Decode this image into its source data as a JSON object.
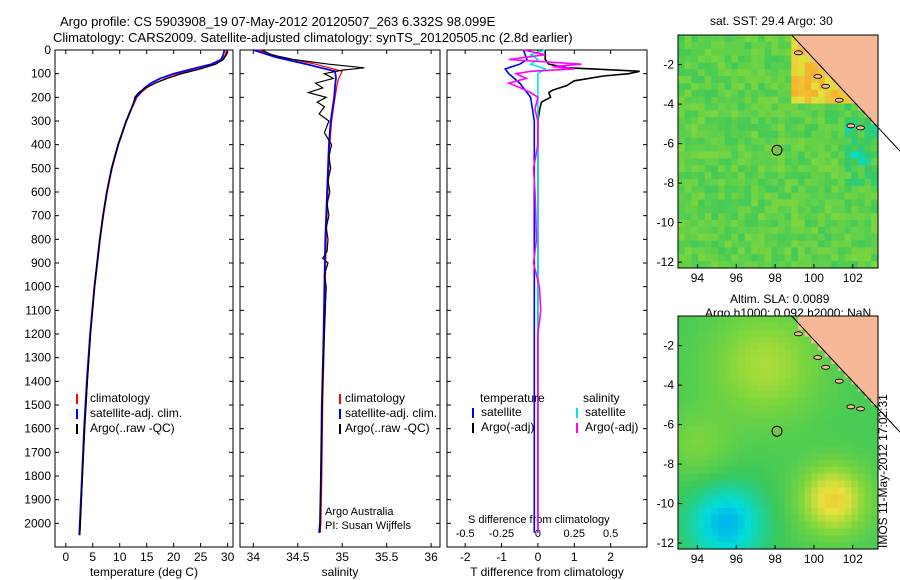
{
  "header": {
    "title_line1": "Argo profile: CS 5903908_19 07-May-2012 20120507_263 6.332S 98.099E",
    "title_line2": "Climatology: CARS2009. Satellite-adjusted climatology: synTS_20120505.nc (2.8d earlier)"
  },
  "sat_panel_title": "sat. SST: 29.4 Argo: 30",
  "sla_line1": "Altim. SLA: 0.0089",
  "sla_line2": "Argo h1000: 0.092 h2000: NaN",
  "timestamp": "IMOS 11-May-2012 17:02:31",
  "credit_line1": "Argo Australia",
  "credit_line2": "PI: Susan Wijffels",
  "s_diff_label": "S difference from climatology",
  "colors": {
    "climatology": "#ff0000",
    "satellite": "#0000ff",
    "argo": "#000000",
    "salinity_sat": "#00e5ee",
    "salinity_argo": "#ff00ff",
    "float_marker": "#7cc242",
    "land": "#f6b896"
  },
  "chart_data": [
    {
      "type": "line",
      "xlabel": "temperature (deg C)",
      "ylabel": "",
      "xlim": [
        -2,
        31
      ],
      "ylim": [
        2100,
        0
      ],
      "xticks": [
        0,
        5,
        10,
        15,
        20,
        25,
        30
      ],
      "yticks": [
        0,
        100,
        200,
        300,
        400,
        500,
        600,
        700,
        800,
        900,
        1000,
        1100,
        1200,
        1300,
        1400,
        1500,
        1600,
        1700,
        1800,
        1900,
        2000
      ],
      "legend": [
        "climatology",
        "satellite-adj. clim.",
        "Argo(..raw -QC)"
      ],
      "legend_position": "lower-left",
      "series": [
        {
          "name": "climatology",
          "y": [
            0,
            20,
            40,
            60,
            80,
            100,
            120,
            140,
            160,
            180,
            200,
            250,
            300,
            400,
            500,
            600,
            700,
            800,
            1000,
            1200,
            1400,
            1600,
            1800,
            2000,
            2050
          ],
          "values": [
            29.8,
            29.6,
            29.0,
            27.5,
            24.5,
            21.0,
            18.5,
            16.5,
            15.0,
            14.0,
            13.2,
            12.2,
            11.3,
            9.8,
            8.6,
            7.7,
            7.0,
            6.4,
            5.4,
            4.6,
            4.0,
            3.5,
            3.1,
            2.7,
            2.6
          ]
        },
        {
          "name": "satellite-adj. clim.",
          "y": [
            0,
            20,
            40,
            60,
            80,
            100,
            120,
            140,
            160,
            180,
            200,
            250,
            300,
            400,
            500,
            600,
            700,
            800,
            1000,
            1200,
            1400,
            1600,
            1800,
            2000,
            2050
          ],
          "values": [
            29.4,
            29.2,
            28.8,
            27.0,
            23.5,
            20.0,
            17.5,
            15.8,
            14.6,
            13.8,
            13.0,
            12.1,
            11.2,
            9.7,
            8.5,
            7.6,
            6.9,
            6.3,
            5.3,
            4.5,
            3.9,
            3.4,
            3.0,
            2.6,
            2.5
          ]
        },
        {
          "name": "Argo(..raw -QC)",
          "y": [
            0,
            20,
            40,
            60,
            80,
            100,
            120,
            140,
            160,
            180,
            200,
            220,
            250,
            300,
            400,
            500,
            600,
            700,
            800,
            1000,
            1200,
            1400,
            1600,
            1800,
            2000,
            2050
          ],
          "values": [
            30.0,
            29.8,
            29.2,
            27.8,
            25.0,
            21.5,
            18.8,
            16.6,
            14.8,
            13.5,
            12.8,
            12.6,
            12.1,
            11.2,
            9.7,
            8.5,
            7.6,
            6.9,
            6.3,
            5.3,
            4.6,
            4.0,
            3.5,
            3.1,
            2.7,
            2.6
          ]
        }
      ]
    },
    {
      "type": "line",
      "xlabel": "salinity",
      "ylabel": "",
      "xlim": [
        33.85,
        36.1
      ],
      "ylim": [
        2100,
        0
      ],
      "xticks": [
        34,
        34.5,
        35,
        35.5,
        36
      ],
      "legend": [
        "climatology",
        "satellite-adj. clim.",
        "Argo(..raw -QC)"
      ],
      "legend_position": "lower-left",
      "series": [
        {
          "name": "climatology",
          "y": [
            0,
            30,
            60,
            90,
            120,
            150,
            200,
            300,
            400,
            500,
            600,
            800,
            1000,
            1200,
            1500,
            1800,
            2000,
            2040
          ],
          "values": [
            34.05,
            34.3,
            34.7,
            35.0,
            34.96,
            34.94,
            34.92,
            34.88,
            34.86,
            34.85,
            34.84,
            34.82,
            34.81,
            34.8,
            34.78,
            34.77,
            34.76,
            34.75
          ]
        },
        {
          "name": "satellite-adj. clim.",
          "y": [
            0,
            30,
            60,
            90,
            120,
            150,
            200,
            300,
            400,
            500,
            600,
            800,
            1000,
            1200,
            1500,
            1800,
            2000,
            2040
          ],
          "values": [
            34.0,
            34.25,
            34.6,
            34.92,
            34.93,
            34.92,
            34.91,
            34.87,
            34.85,
            34.84,
            34.83,
            34.81,
            34.8,
            34.79,
            34.77,
            34.76,
            34.75,
            34.74
          ]
        },
        {
          "name": "Argo(..raw -QC)",
          "y": [
            0,
            20,
            40,
            60,
            75,
            85,
            100,
            120,
            140,
            160,
            180,
            200,
            220,
            240,
            270,
            300,
            350,
            400,
            450,
            500,
            550,
            600,
            650,
            700,
            750,
            800,
            850,
            880,
            900,
            950,
            1000,
            1100,
            1200,
            1400,
            1600,
            1800,
            2000,
            2040
          ],
          "values": [
            34.1,
            34.2,
            34.45,
            34.85,
            35.25,
            35.0,
            34.8,
            34.9,
            34.7,
            34.78,
            34.62,
            34.82,
            34.72,
            34.8,
            34.74,
            34.85,
            34.8,
            34.88,
            34.85,
            34.87,
            34.84,
            34.86,
            34.83,
            34.85,
            34.82,
            34.84,
            34.83,
            34.78,
            34.84,
            34.8,
            34.82,
            34.81,
            34.8,
            34.78,
            34.77,
            34.76,
            34.75,
            34.75
          ]
        }
      ]
    },
    {
      "type": "line",
      "xlabel": "T difference from climatology",
      "ylabel": "",
      "xlim": [
        -2.5,
        3.0
      ],
      "ylim": [
        2100,
        0
      ],
      "xticks": [
        -2,
        -1,
        0,
        1,
        2
      ],
      "x2label": "S difference from climatology",
      "x2lim": [
        -0.625,
        0.75
      ],
      "x2ticks": [
        -0.5,
        -0.25,
        0,
        0.25,
        0.5
      ],
      "legend": [
        "temperature satellite",
        "temperature Argo(-adj)",
        "salinity satellite",
        "salinity Argo(-adj)"
      ],
      "legend_headers": [
        "temperature",
        "salinity"
      ],
      "legend_entries": [
        "satellite",
        "Argo(-adj)",
        "satellite",
        "Argo(-adj)"
      ],
      "legend_position": "lower-center",
      "series": [
        {
          "name": "temperature satellite",
          "axis": "T",
          "y": [
            0,
            40,
            60,
            80,
            100,
            140,
            200,
            300,
            500,
            800,
            1200,
            1600,
            2000,
            2040
          ],
          "values": [
            -0.4,
            -0.3,
            -0.5,
            -0.9,
            -0.8,
            -0.5,
            -0.2,
            -0.1,
            -0.1,
            -0.1,
            -0.1,
            -0.1,
            -0.1,
            -0.1
          ]
        },
        {
          "name": "temperature Argo(-adj)",
          "axis": "T",
          "y": [
            0,
            20,
            40,
            60,
            75,
            80,
            90,
            100,
            110,
            120,
            130,
            140,
            150,
            160,
            170,
            180,
            200,
            220,
            250,
            300,
            400,
            600,
            800,
            1000,
            1200,
            1500,
            1800,
            2000,
            2040
          ],
          "values": [
            0.2,
            0.2,
            0.2,
            0.3,
            0.8,
            1.5,
            2.8,
            2.5,
            1.8,
            1.4,
            1.0,
            0.9,
            0.8,
            0.6,
            0.4,
            0.3,
            0.35,
            0.1,
            0.05,
            0.0,
            0.0,
            0.0,
            0.0,
            0.0,
            0.0,
            0.0,
            0.0,
            0.0,
            0.0
          ]
        },
        {
          "name": "salinity satellite",
          "axis": "S",
          "y": [
            0,
            20,
            40,
            60,
            80,
            100,
            150,
            200,
            300,
            500,
            800,
            1200,
            1600,
            2000,
            2040
          ],
          "values": [
            0.05,
            -0.05,
            0.0,
            -0.05,
            0.05,
            0.0,
            0.0,
            0.0,
            0.0,
            0.0,
            0.0,
            0.0,
            0.0,
            0.0,
            0.0
          ]
        },
        {
          "name": "salinity Argo(-adj)",
          "axis": "S",
          "y": [
            0,
            20,
            40,
            60,
            70,
            80,
            90,
            100,
            120,
            140,
            160,
            180,
            200,
            250,
            300,
            400,
            500,
            600,
            800,
            900,
            1000,
            1100,
            1200,
            1400,
            1600,
            1800,
            2000,
            2040
          ],
          "values": [
            -0.1,
            0.05,
            -0.2,
            0.3,
            0.1,
            0.25,
            -0.05,
            -0.15,
            -0.08,
            -0.2,
            -0.12,
            -0.05,
            0.0,
            -0.02,
            0.0,
            0.0,
            -0.03,
            -0.02,
            -0.01,
            -0.03,
            0.01,
            0.02,
            0.0,
            0.0,
            0.0,
            0.0,
            0.0,
            0.0
          ]
        }
      ]
    },
    {
      "type": "heatmap",
      "title": "sat. SST: 29.4 Argo: 30",
      "xlim": [
        93,
        103.3
      ],
      "ylim": [
        -12.3,
        -0.5
      ],
      "xticks": [
        94,
        96,
        98,
        100,
        102
      ],
      "yticks": [
        -2,
        -4,
        -6,
        -8,
        -10,
        -12
      ],
      "float_position": {
        "lon": 98.099,
        "lat": -6.332
      }
    },
    {
      "type": "heatmap",
      "title": "Altim. SLA: 0.0089",
      "xlim": [
        93,
        103.3
      ],
      "ylim": [
        -12.3,
        -0.5
      ],
      "xticks": [
        94,
        96,
        98,
        100,
        102
      ],
      "yticks": [
        -2,
        -4,
        -6,
        -8,
        -10,
        -12
      ],
      "float_position": {
        "lon": 98.099,
        "lat": -6.332
      }
    }
  ]
}
